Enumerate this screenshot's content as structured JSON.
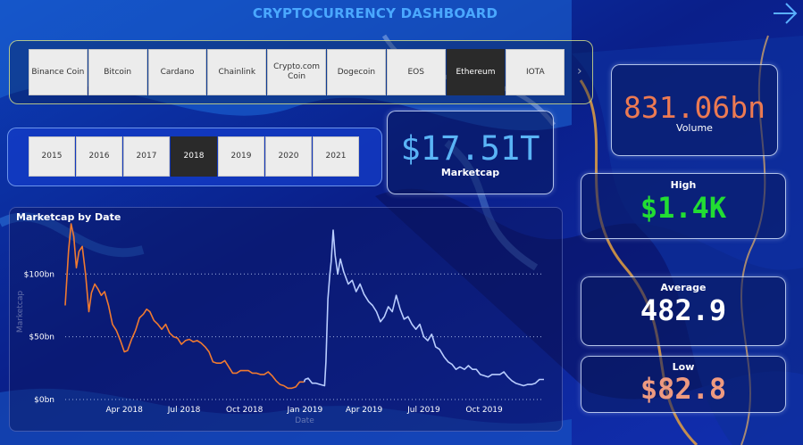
{
  "dashboard": {
    "title": "CRYPTOCURRENCY DASHBOARD"
  },
  "coin_slicer": {
    "items": [
      "Binance Coin",
      "Bitcoin",
      "Cardano",
      "Chainlink",
      "Crypto.com Coin",
      "Dogecoin",
      "EOS",
      "Ethereum",
      "IOTA"
    ],
    "selected": "Ethereum"
  },
  "year_slicer": {
    "items": [
      "2015",
      "2016",
      "2017",
      "2018",
      "2019",
      "2020",
      "2021"
    ],
    "selected": "2018"
  },
  "cards": {
    "marketcap": {
      "value": "$17.51T",
      "label": "Marketcap",
      "color": "#5ab4f6"
    },
    "volume": {
      "value": "831.06bn",
      "label": "Volume",
      "color": "#ec7a52"
    },
    "high": {
      "value": "$1.4K",
      "label": "High",
      "color": "#22dd33"
    },
    "average": {
      "value": "482.9",
      "label": "Average",
      "color": "#ffffff"
    },
    "low": {
      "value": "$82.8",
      "label": "Low",
      "color": "#ee9a80"
    }
  },
  "chart_data": {
    "type": "line",
    "title": "Marketcap by Date",
    "xlabel": "Date",
    "ylabel": "Marketcap",
    "y_ticks": [
      "$0bn",
      "$50bn",
      "$100bn"
    ],
    "x_ticks": [
      "Apr 2018",
      "Jul 2018",
      "Oct 2018",
      "Jan 2019",
      "Apr 2019",
      "Jul 2019",
      "Oct 2019"
    ],
    "ylim": [
      0,
      140
    ],
    "x_range": [
      "2018-01-01",
      "2019-12-31"
    ],
    "grid": true,
    "series": [
      {
        "color": "#f07a30",
        "points": [
          [
            "2018-01-01",
            75
          ],
          [
            "2018-01-06",
            118
          ],
          [
            "2018-01-10",
            140
          ],
          [
            "2018-01-14",
            130
          ],
          [
            "2018-01-18",
            105
          ],
          [
            "2018-01-22",
            118
          ],
          [
            "2018-01-27",
            122
          ],
          [
            "2018-02-01",
            100
          ],
          [
            "2018-02-06",
            70
          ],
          [
            "2018-02-10",
            85
          ],
          [
            "2018-02-15",
            92
          ],
          [
            "2018-02-20",
            88
          ],
          [
            "2018-02-25",
            83
          ],
          [
            "2018-03-02",
            86
          ],
          [
            "2018-03-08",
            75
          ],
          [
            "2018-03-14",
            60
          ],
          [
            "2018-03-20",
            55
          ],
          [
            "2018-03-26",
            47
          ],
          [
            "2018-04-01",
            38
          ],
          [
            "2018-04-06",
            39
          ],
          [
            "2018-04-12",
            48
          ],
          [
            "2018-04-18",
            55
          ],
          [
            "2018-04-24",
            65
          ],
          [
            "2018-04-30",
            68
          ],
          [
            "2018-05-05",
            72
          ],
          [
            "2018-05-10",
            70
          ],
          [
            "2018-05-16",
            63
          ],
          [
            "2018-05-22",
            60
          ],
          [
            "2018-05-28",
            56
          ],
          [
            "2018-06-03",
            60
          ],
          [
            "2018-06-09",
            53
          ],
          [
            "2018-06-15",
            50
          ],
          [
            "2018-06-21",
            49
          ],
          [
            "2018-06-27",
            44
          ],
          [
            "2018-07-03",
            47
          ],
          [
            "2018-07-09",
            48
          ],
          [
            "2018-07-15",
            46
          ],
          [
            "2018-07-21",
            47
          ],
          [
            "2018-07-27",
            45
          ],
          [
            "2018-08-02",
            42
          ],
          [
            "2018-08-08",
            38
          ],
          [
            "2018-08-14",
            30
          ],
          [
            "2018-08-20",
            29
          ],
          [
            "2018-08-26",
            29
          ],
          [
            "2018-09-01",
            31
          ],
          [
            "2018-09-07",
            26
          ],
          [
            "2018-09-13",
            21
          ],
          [
            "2018-09-19",
            21
          ],
          [
            "2018-09-25",
            23
          ],
          [
            "2018-10-01",
            23
          ],
          [
            "2018-10-07",
            23
          ],
          [
            "2018-10-13",
            21
          ],
          [
            "2018-10-19",
            21
          ],
          [
            "2018-10-25",
            20
          ],
          [
            "2018-10-31",
            20
          ],
          [
            "2018-11-06",
            22
          ],
          [
            "2018-11-12",
            19
          ],
          [
            "2018-11-18",
            15
          ],
          [
            "2018-11-24",
            12
          ],
          [
            "2018-11-30",
            11
          ],
          [
            "2018-12-06",
            9
          ],
          [
            "2018-12-12",
            9
          ],
          [
            "2018-12-18",
            10
          ],
          [
            "2018-12-24",
            14
          ],
          [
            "2018-12-31",
            14
          ]
        ]
      },
      {
        "color": "#b9cdff",
        "points": [
          [
            "2019-01-01",
            16
          ],
          [
            "2019-01-06",
            17
          ],
          [
            "2019-01-12",
            13
          ],
          [
            "2019-01-18",
            13
          ],
          [
            "2019-01-24",
            12
          ],
          [
            "2019-01-31",
            11
          ],
          [
            "2019-02-02",
            30
          ],
          [
            "2019-02-05",
            80
          ],
          [
            "2019-02-08",
            100
          ],
          [
            "2019-02-10",
            110
          ],
          [
            "2019-02-13",
            135
          ],
          [
            "2019-02-16",
            115
          ],
          [
            "2019-02-20",
            100
          ],
          [
            "2019-02-24",
            112
          ],
          [
            "2019-03-01",
            102
          ],
          [
            "2019-03-08",
            92
          ],
          [
            "2019-03-14",
            95
          ],
          [
            "2019-03-20",
            86
          ],
          [
            "2019-03-26",
            92
          ],
          [
            "2019-04-01",
            84
          ],
          [
            "2019-04-08",
            78
          ],
          [
            "2019-04-14",
            75
          ],
          [
            "2019-04-20",
            70
          ],
          [
            "2019-04-26",
            62
          ],
          [
            "2019-05-02",
            66
          ],
          [
            "2019-05-08",
            74
          ],
          [
            "2019-05-14",
            70
          ],
          [
            "2019-05-20",
            83
          ],
          [
            "2019-05-26",
            72
          ],
          [
            "2019-06-01",
            64
          ],
          [
            "2019-06-07",
            66
          ],
          [
            "2019-06-13",
            60
          ],
          [
            "2019-06-19",
            56
          ],
          [
            "2019-06-25",
            60
          ],
          [
            "2019-07-01",
            50
          ],
          [
            "2019-07-07",
            47
          ],
          [
            "2019-07-13",
            52
          ],
          [
            "2019-07-19",
            42
          ],
          [
            "2019-07-25",
            40
          ],
          [
            "2019-08-01",
            34
          ],
          [
            "2019-08-07",
            30
          ],
          [
            "2019-08-13",
            28
          ],
          [
            "2019-08-19",
            24
          ],
          [
            "2019-08-25",
            26
          ],
          [
            "2019-09-01",
            24
          ],
          [
            "2019-09-07",
            27
          ],
          [
            "2019-09-13",
            24
          ],
          [
            "2019-09-19",
            24
          ],
          [
            "2019-09-25",
            20
          ],
          [
            "2019-10-01",
            19
          ],
          [
            "2019-10-07",
            18
          ],
          [
            "2019-10-13",
            20
          ],
          [
            "2019-10-19",
            20
          ],
          [
            "2019-10-25",
            20
          ],
          [
            "2019-10-31",
            22
          ],
          [
            "2019-11-06",
            18
          ],
          [
            "2019-11-12",
            15
          ],
          [
            "2019-11-18",
            13
          ],
          [
            "2019-11-24",
            12
          ],
          [
            "2019-11-30",
            11
          ],
          [
            "2019-12-06",
            12
          ],
          [
            "2019-12-12",
            12
          ],
          [
            "2019-12-18",
            13
          ],
          [
            "2019-12-24",
            16
          ],
          [
            "2019-12-31",
            16
          ]
        ]
      }
    ]
  }
}
